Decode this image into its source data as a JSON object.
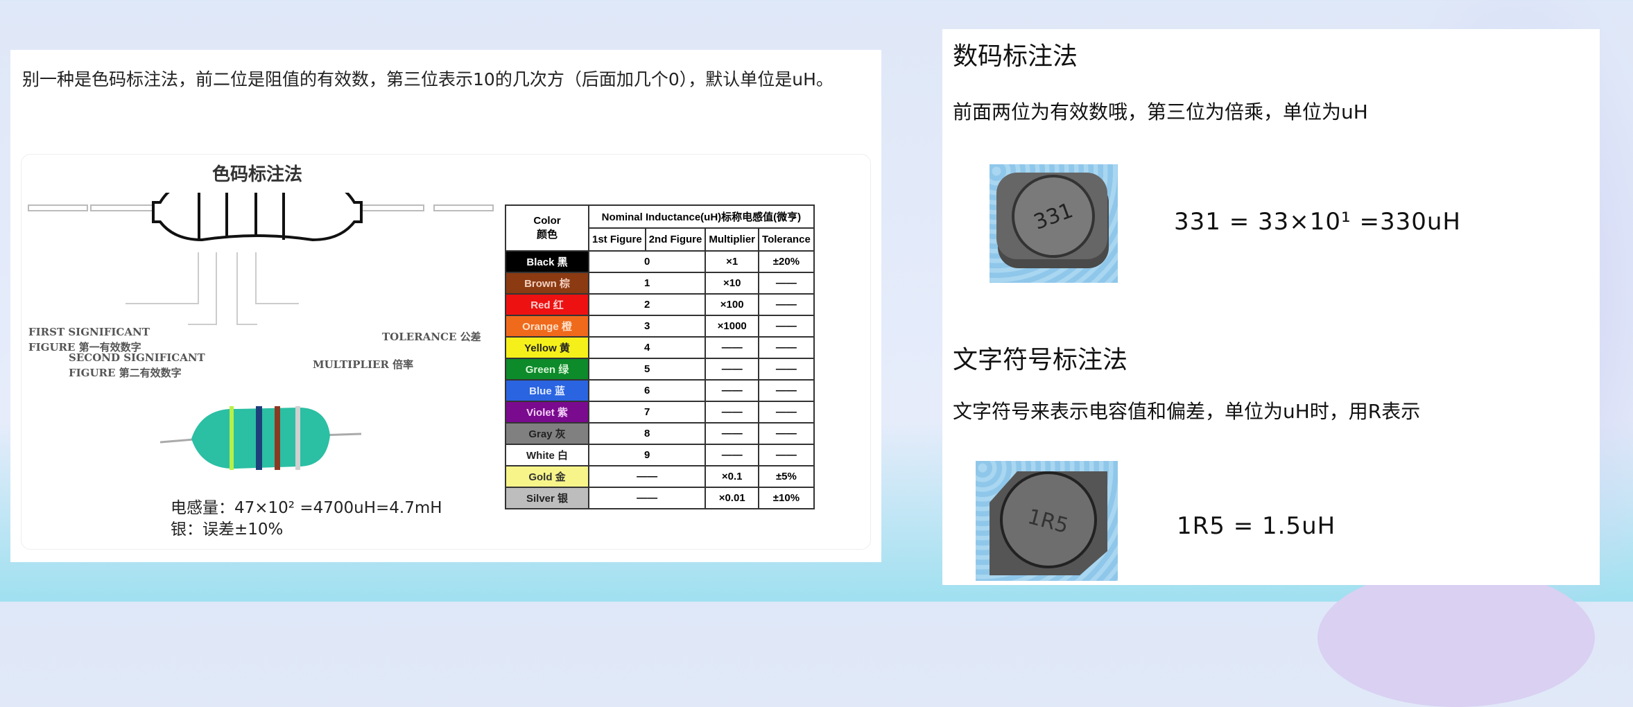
{
  "left": {
    "intro": "别一种是色码标注法，前二位是阻值的有效数，第三位表示10的几次方（后面加几个0），默认单位是uH。",
    "figure_title": "色码标注法",
    "labels": {
      "first": "FIRST SIGNIFICANT",
      "first2": "FIGURE 第一有效数字",
      "second": "SECOND SIGNIFICANT",
      "second2": "FIGURE 第二有效数字",
      "multiplier": "MULTIPLIER 倍率",
      "tolerance": "TOLERANCE 公差"
    },
    "caption1": "电感量：47×10² =4700uH=4.7mH",
    "caption2": "银：误差±10%",
    "table": {
      "color_header": "Color",
      "color_header_cn": "颜色",
      "nominal_header": "Nominal Inductance(uH)标称电感值(微亨)",
      "sub_headers": [
        "1st Figure",
        "2nd Figure",
        "Multiplier",
        "Tolerance"
      ],
      "rows": [
        {
          "color": "Black 黑",
          "bg": "#000000",
          "fg": "#ffffff",
          "figure": "0",
          "multiplier": "×1",
          "tolerance": "±20%"
        },
        {
          "color": "Brown 棕",
          "bg": "#8b3a12",
          "fg": "#f3d0c0",
          "figure": "1",
          "multiplier": "×10",
          "tolerance": "——"
        },
        {
          "color": "Red 红",
          "bg": "#ee1111",
          "fg": "#ffd0d0",
          "figure": "2",
          "multiplier": "×100",
          "tolerance": "——"
        },
        {
          "color": "Orange 橙",
          "bg": "#f06a1c",
          "fg": "#ffe0c8",
          "figure": "3",
          "multiplier": "×1000",
          "tolerance": "——"
        },
        {
          "color": "Yellow 黄",
          "bg": "#f5f01a",
          "fg": "#222222",
          "figure": "4",
          "multiplier": "——",
          "tolerance": "——"
        },
        {
          "color": "Green 绿",
          "bg": "#0d8a2a",
          "fg": "#d8f5d8",
          "figure": "5",
          "multiplier": "——",
          "tolerance": "——"
        },
        {
          "color": "Blue 蓝",
          "bg": "#2a64e0",
          "fg": "#dfe8ff",
          "figure": "6",
          "multiplier": "——",
          "tolerance": "——"
        },
        {
          "color": "Violet 紫",
          "bg": "#7a0a8e",
          "fg": "#f2d0f8",
          "figure": "7",
          "multiplier": "——",
          "tolerance": "——"
        },
        {
          "color": "Gray 灰",
          "bg": "#808080",
          "fg": "#222222",
          "figure": "8",
          "multiplier": "——",
          "tolerance": "——"
        },
        {
          "color": "White 白",
          "bg": "#ffffff",
          "fg": "#222222",
          "figure": "9",
          "multiplier": "——",
          "tolerance": "——"
        },
        {
          "color": "Gold 金",
          "bg": "#f7f58a",
          "fg": "#333333",
          "figure": "——",
          "multiplier": "×0.1",
          "tolerance": "±5%"
        },
        {
          "color": "Silver 银",
          "bg": "#bdbdbd",
          "fg": "#222222",
          "figure": "——",
          "multiplier": "×0.01",
          "tolerance": "±10%"
        }
      ]
    }
  },
  "right": {
    "heading1": "数码标注法",
    "text1": "前面两位为有效数哦，第三位为倍乘，单位为uH",
    "chip1_marking": "331",
    "formula1": "331 = 33×10¹ =330uH",
    "heading2": "文字符号标注法",
    "text2": "文字符号来表示电容值和偏差，单位为uH时，用R表示",
    "chip2_marking": "1R5",
    "formula2": "1R5 = 1.5uH"
  }
}
